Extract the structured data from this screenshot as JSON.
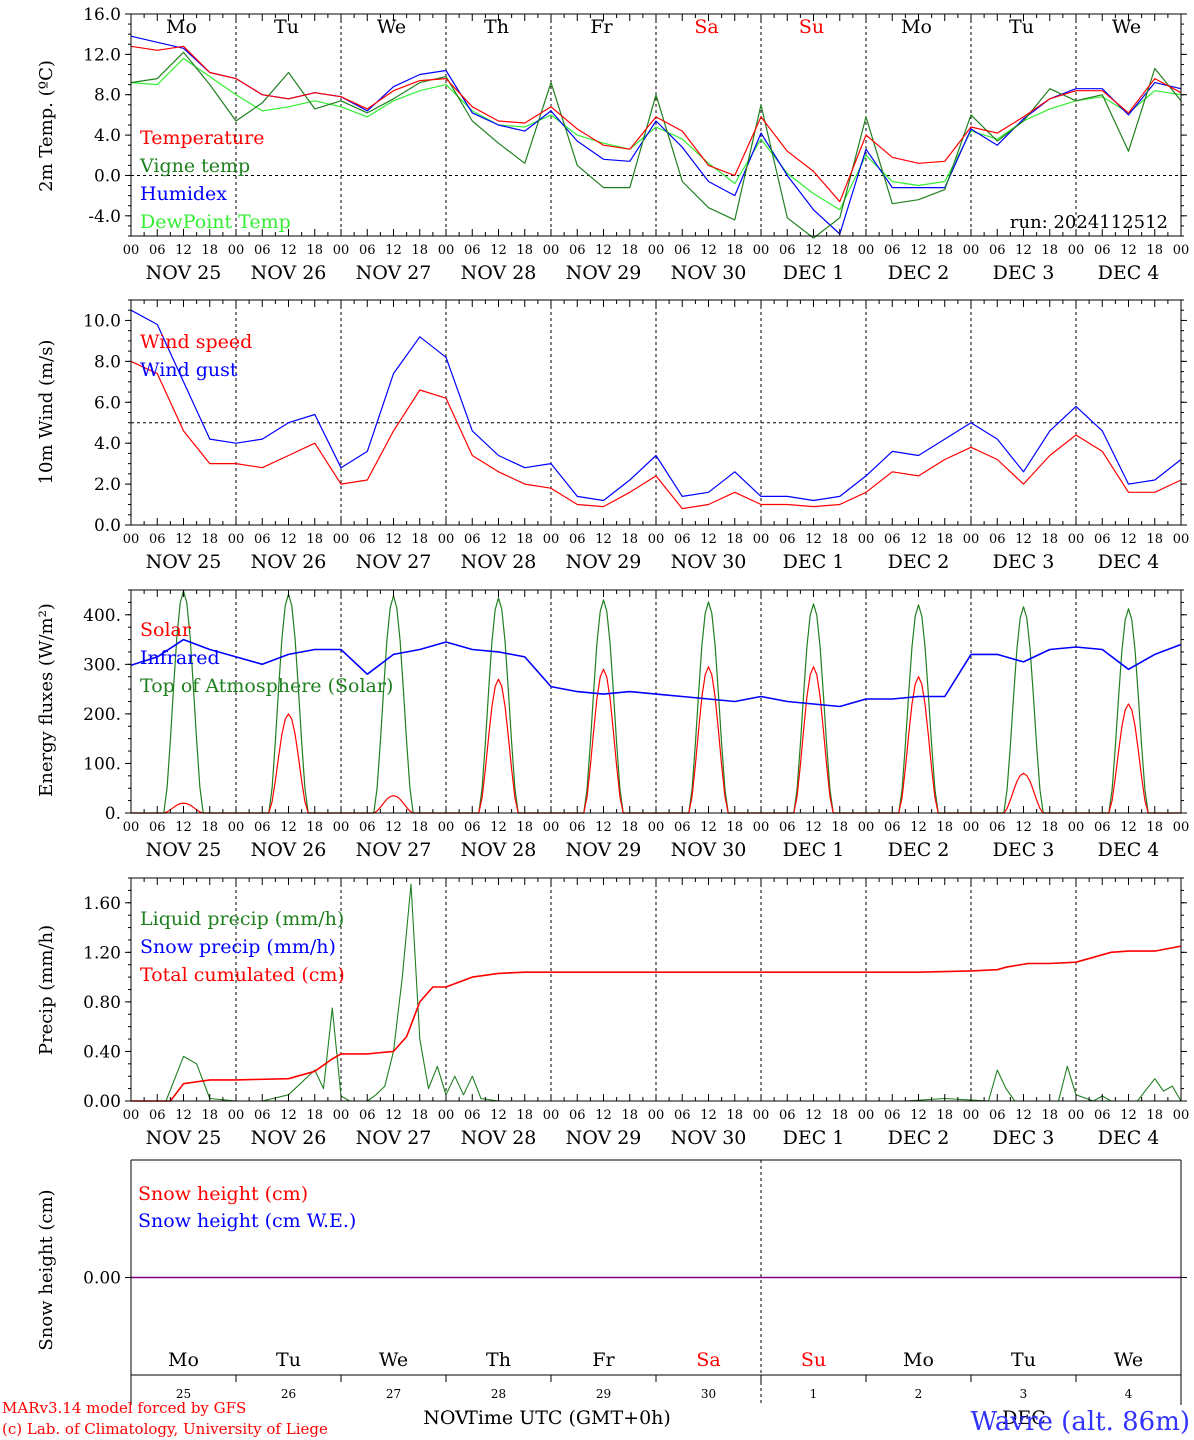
{
  "meteogram": {
    "day_names": [
      "Mo",
      "Tu",
      "We",
      "Th",
      "Fr",
      "Sa",
      "Su",
      "Mo",
      "Tu",
      "We"
    ],
    "day_name_colors": [
      "#000000",
      "#000000",
      "#000000",
      "#000000",
      "#000000",
      "#ff0000",
      "#ff0000",
      "#000000",
      "#000000",
      "#000000"
    ],
    "date_labels": [
      "NOV 25",
      "NOV 26",
      "NOV 27",
      "NOV 28",
      "NOV 29",
      "NOV 30",
      "DEC  1",
      "DEC  2",
      "DEC  3",
      "DEC  4"
    ],
    "hour_ticks": [
      "00",
      "06",
      "12",
      "18"
    ],
    "snow_day_numbers": [
      "25",
      "26",
      "27",
      "28",
      "29",
      "30",
      "1",
      "2",
      "3",
      "4"
    ],
    "snow_month_labels": [
      "NOV",
      "DEC"
    ],
    "xlabel": "Time UTC (GMT+0h)",
    "run": "run: 2024112512",
    "credit_line1": "MARv3.14 model forced by GFS",
    "credit_line2": "(c) Lab. of Climatology, University of Liege",
    "station": "Wavre (alt. 86m)",
    "colors": {
      "red": "#ff0000",
      "green": "#208020",
      "blue": "#0000ff",
      "light_green": "#33ee33",
      "purple": "#800080"
    }
  },
  "chart_data": [
    {
      "type": "line",
      "ylabel": "2m Temp. (ºC)",
      "ylim": [
        -6,
        16
      ],
      "yticks": [
        "16.0",
        "12.0",
        "8.0",
        "4.0",
        "0.0",
        "-4.0"
      ],
      "ytick_values": [
        16,
        12,
        8,
        4,
        0,
        -4
      ],
      "reference_line": 0,
      "x_unit": "hours since Nov 25 00 UTC",
      "series": [
        {
          "name": "Temperature",
          "color": "#ff0000",
          "x": [
            0,
            6,
            12,
            18,
            24,
            30,
            36,
            42,
            48,
            54,
            60,
            66,
            72,
            78,
            84,
            90,
            96,
            102,
            108,
            114,
            120,
            126,
            132,
            138,
            144,
            150,
            156,
            162,
            168,
            174,
            180,
            186,
            192,
            198,
            204,
            210,
            216,
            222,
            228,
            234,
            240
          ],
          "values": [
            12.8,
            12.4,
            12.8,
            10.2,
            9.6,
            8.0,
            7.6,
            8.2,
            7.8,
            6.6,
            8.4,
            9.4,
            9.6,
            6.8,
            5.4,
            5.2,
            6.8,
            4.6,
            3.0,
            2.6,
            5.8,
            4.4,
            1.0,
            0.0,
            5.8,
            2.4,
            0.4,
            -2.6,
            4.0,
            1.8,
            1.2,
            1.4,
            4.8,
            4.2,
            5.8,
            7.6,
            8.4,
            8.4,
            6.2,
            9.6,
            8.2
          ]
        },
        {
          "name": "Vigne temp",
          "color": "#208020",
          "x": [
            0,
            6,
            12,
            18,
            24,
            30,
            36,
            42,
            48,
            54,
            60,
            66,
            72,
            78,
            84,
            90,
            96,
            102,
            108,
            114,
            120,
            126,
            132,
            138,
            144,
            150,
            156,
            162,
            168,
            174,
            180,
            186,
            192,
            198,
            204,
            210,
            216,
            222,
            228,
            234,
            240
          ],
          "values": [
            9.2,
            9.6,
            12.2,
            9.0,
            5.4,
            7.2,
            10.2,
            6.6,
            7.4,
            6.2,
            7.6,
            9.2,
            9.8,
            5.4,
            3.2,
            1.2,
            9.2,
            1.0,
            -1.2,
            -1.2,
            8.0,
            -0.6,
            -3.2,
            -4.4,
            7.0,
            -4.2,
            -6.2,
            -4.2,
            5.8,
            -2.8,
            -2.4,
            -1.4,
            6.0,
            3.4,
            5.4,
            8.6,
            7.4,
            8.0,
            2.4,
            10.6,
            7.4
          ]
        },
        {
          "name": "Humidex",
          "color": "#0000ff",
          "x": [
            0,
            6,
            12,
            18,
            24,
            30,
            36,
            42,
            48,
            54,
            60,
            66,
            72,
            78,
            84,
            90,
            96,
            102,
            108,
            114,
            120,
            126,
            132,
            138,
            144,
            150,
            156,
            162,
            168,
            174,
            180,
            186,
            192,
            198,
            204,
            210,
            216,
            222,
            228,
            234,
            240
          ],
          "values": [
            13.8,
            13.2,
            12.6,
            10.2,
            9.6,
            8.0,
            7.6,
            8.2,
            7.8,
            6.4,
            8.8,
            10.0,
            10.4,
            6.2,
            5.0,
            4.4,
            6.4,
            3.4,
            1.6,
            1.4,
            5.4,
            2.8,
            -0.6,
            -2.0,
            4.2,
            0.0,
            -3.4,
            -5.8,
            2.6,
            -1.2,
            -1.2,
            -1.2,
            4.6,
            3.0,
            5.6,
            7.6,
            8.6,
            8.6,
            6.0,
            9.2,
            8.6
          ]
        },
        {
          "name": "DewPoint Temp",
          "color": "#33ee33",
          "x": [
            0,
            6,
            12,
            18,
            24,
            30,
            36,
            42,
            48,
            54,
            60,
            66,
            72,
            78,
            84,
            90,
            96,
            102,
            108,
            114,
            120,
            126,
            132,
            138,
            144,
            150,
            156,
            162,
            168,
            174,
            180,
            186,
            192,
            198,
            204,
            210,
            216,
            222,
            228,
            234,
            240
          ],
          "values": [
            9.2,
            9.0,
            11.6,
            9.8,
            8.0,
            6.4,
            6.8,
            7.4,
            6.8,
            5.8,
            7.4,
            8.4,
            9.0,
            6.4,
            5.0,
            4.8,
            6.0,
            4.0,
            3.2,
            2.6,
            4.8,
            3.6,
            1.2,
            -0.8,
            3.6,
            0.2,
            -1.8,
            -3.4,
            2.0,
            -0.6,
            -1.0,
            -0.6,
            4.4,
            3.6,
            5.4,
            6.6,
            7.4,
            7.8,
            6.2,
            8.4,
            8.0
          ]
        }
      ]
    },
    {
      "type": "line",
      "ylabel": "10m Wind (m/s)",
      "ylim": [
        0,
        11
      ],
      "yticks": [
        "10.0",
        "8.0",
        "6.0",
        "4.0",
        "2.0",
        "0.0"
      ],
      "ytick_values": [
        10,
        8,
        6,
        4,
        2,
        0
      ],
      "reference_line": 5,
      "series": [
        {
          "name": "Wind speed",
          "color": "#ff0000",
          "x": [
            0,
            6,
            12,
            18,
            24,
            30,
            36,
            42,
            48,
            54,
            60,
            66,
            72,
            78,
            84,
            90,
            96,
            102,
            108,
            114,
            120,
            126,
            132,
            138,
            144,
            150,
            156,
            162,
            168,
            174,
            180,
            186,
            192,
            198,
            204,
            210,
            216,
            222,
            228,
            234,
            240
          ],
          "values": [
            8.0,
            7.4,
            4.6,
            3.0,
            3.0,
            2.8,
            3.4,
            4.0,
            2.0,
            2.2,
            4.6,
            6.6,
            6.2,
            3.4,
            2.6,
            2.0,
            1.8,
            1.0,
            0.9,
            1.6,
            2.4,
            0.8,
            1.0,
            1.6,
            1.0,
            1.0,
            0.9,
            1.0,
            1.6,
            2.6,
            2.4,
            3.2,
            3.8,
            3.2,
            2.0,
            3.4,
            4.4,
            3.6,
            1.6,
            1.6,
            2.2
          ]
        },
        {
          "name": "Wind gust",
          "color": "#0000ff",
          "x": [
            0,
            6,
            12,
            18,
            24,
            30,
            36,
            42,
            48,
            54,
            60,
            66,
            72,
            78,
            84,
            90,
            96,
            102,
            108,
            114,
            120,
            126,
            132,
            138,
            144,
            150,
            156,
            162,
            168,
            174,
            180,
            186,
            192,
            198,
            204,
            210,
            216,
            222,
            228,
            234,
            240
          ],
          "values": [
            10.5,
            9.8,
            7.0,
            4.2,
            4.0,
            4.2,
            5.0,
            5.4,
            2.8,
            3.6,
            7.4,
            9.2,
            8.2,
            4.6,
            3.4,
            2.8,
            3.0,
            1.4,
            1.2,
            2.2,
            3.4,
            1.4,
            1.6,
            2.6,
            1.4,
            1.4,
            1.2,
            1.4,
            2.4,
            3.6,
            3.4,
            4.2,
            5.0,
            4.2,
            2.6,
            4.6,
            5.8,
            4.6,
            2.0,
            2.2,
            3.2
          ]
        }
      ]
    },
    {
      "type": "line",
      "ylabel": "Energy fluxes (W/m²)",
      "ylim": [
        0,
        450
      ],
      "yticks": [
        "400.",
        "300.",
        "200.",
        "100.",
        "0."
      ],
      "ytick_values": [
        400,
        300,
        200,
        100,
        0
      ],
      "series": [
        {
          "name": "Solar",
          "color": "#ff0000",
          "daily_peaks": [
            20,
            200,
            35,
            270,
            290,
            295,
            295,
            275,
            80,
            220
          ]
        },
        {
          "name": "Infrared",
          "color": "#0000ff",
          "x": [
            0,
            6,
            12,
            18,
            24,
            30,
            36,
            42,
            48,
            54,
            60,
            66,
            72,
            78,
            84,
            90,
            96,
            102,
            108,
            114,
            120,
            126,
            132,
            138,
            144,
            150,
            156,
            162,
            168,
            174,
            180,
            186,
            192,
            198,
            204,
            210,
            216,
            222,
            228,
            234,
            240
          ],
          "values": [
            298,
            315,
            350,
            330,
            315,
            300,
            320,
            330,
            330,
            280,
            320,
            330,
            345,
            330,
            325,
            315,
            255,
            245,
            240,
            245,
            240,
            235,
            230,
            225,
            235,
            225,
            220,
            215,
            230,
            230,
            235,
            235,
            320,
            320,
            305,
            330,
            335,
            330,
            290,
            320,
            340
          ]
        },
        {
          "name": "Top of Atmosphere (Solar)",
          "color": "#208020",
          "daily_peaks": [
            448,
            442,
            438,
            434,
            430,
            426,
            422,
            420,
            416,
            412
          ]
        }
      ]
    },
    {
      "type": "line",
      "ylabel": "Precip (mm/h)",
      "ylim": [
        0,
        1.8
      ],
      "yticks": [
        "1.60",
        "1.20",
        "0.80",
        "0.40",
        "0.00"
      ],
      "ytick_values": [
        1.6,
        1.2,
        0.8,
        0.4,
        0.0
      ],
      "series": [
        {
          "name": "Liquid precip (mm/h)",
          "color": "#208020",
          "x": [
            0,
            8,
            12,
            15,
            18,
            24,
            30,
            36,
            42,
            44,
            46,
            48,
            50,
            54,
            56,
            58,
            60,
            62,
            64,
            66,
            68,
            70,
            72,
            74,
            76,
            78,
            80,
            84,
            90,
            120,
            177,
            186,
            196,
            198,
            200,
            202,
            212,
            214,
            216,
            220,
            222,
            224,
            230,
            234,
            236,
            238,
            240
          ],
          "values": [
            0,
            0,
            0.36,
            0.3,
            0.02,
            0,
            0,
            0.05,
            0.25,
            0.1,
            0.75,
            0.04,
            0,
            0,
            0.05,
            0.12,
            0.4,
            1.0,
            1.75,
            0.5,
            0.1,
            0.28,
            0.05,
            0.2,
            0.05,
            0.2,
            0.02,
            0,
            0,
            0,
            0,
            0.02,
            0,
            0.25,
            0.1,
            0,
            0,
            0.28,
            0.05,
            0,
            0.04,
            0,
            0,
            0.18,
            0.08,
            0.12,
            0
          ]
        },
        {
          "name": "Snow precip (mm/h)",
          "color": "#0000ff",
          "x": [
            0,
            240
          ],
          "values": [
            0,
            0
          ]
        },
        {
          "name": "Total cumulated (cm)",
          "color": "#ff0000",
          "x": [
            0,
            9,
            12,
            18,
            24,
            36,
            42,
            46,
            48,
            54,
            60,
            63,
            66,
            69,
            72,
            78,
            84,
            90,
            120,
            150,
            180,
            192,
            198,
            200,
            205,
            210,
            216,
            220,
            224,
            228,
            234,
            240
          ],
          "values": [
            0,
            0,
            0.14,
            0.17,
            0.17,
            0.18,
            0.24,
            0.34,
            0.38,
            0.38,
            0.4,
            0.52,
            0.8,
            0.92,
            0.92,
            1.0,
            1.03,
            1.04,
            1.04,
            1.04,
            1.04,
            1.05,
            1.06,
            1.08,
            1.11,
            1.11,
            1.12,
            1.16,
            1.2,
            1.21,
            1.21,
            1.25
          ]
        }
      ]
    },
    {
      "type": "line",
      "ylabel": "Snow height (cm)",
      "yticks": [
        "0.00"
      ],
      "ytick_values": [
        0
      ],
      "series": [
        {
          "name": "Snow height (cm)",
          "color": "#ff0000",
          "x": [
            0,
            240
          ],
          "values": [
            0,
            0
          ]
        },
        {
          "name": "Snow height (cm W.E.)",
          "color": "#0000ff",
          "x": [
            0,
            240
          ],
          "values": [
            0,
            0
          ]
        }
      ]
    }
  ]
}
